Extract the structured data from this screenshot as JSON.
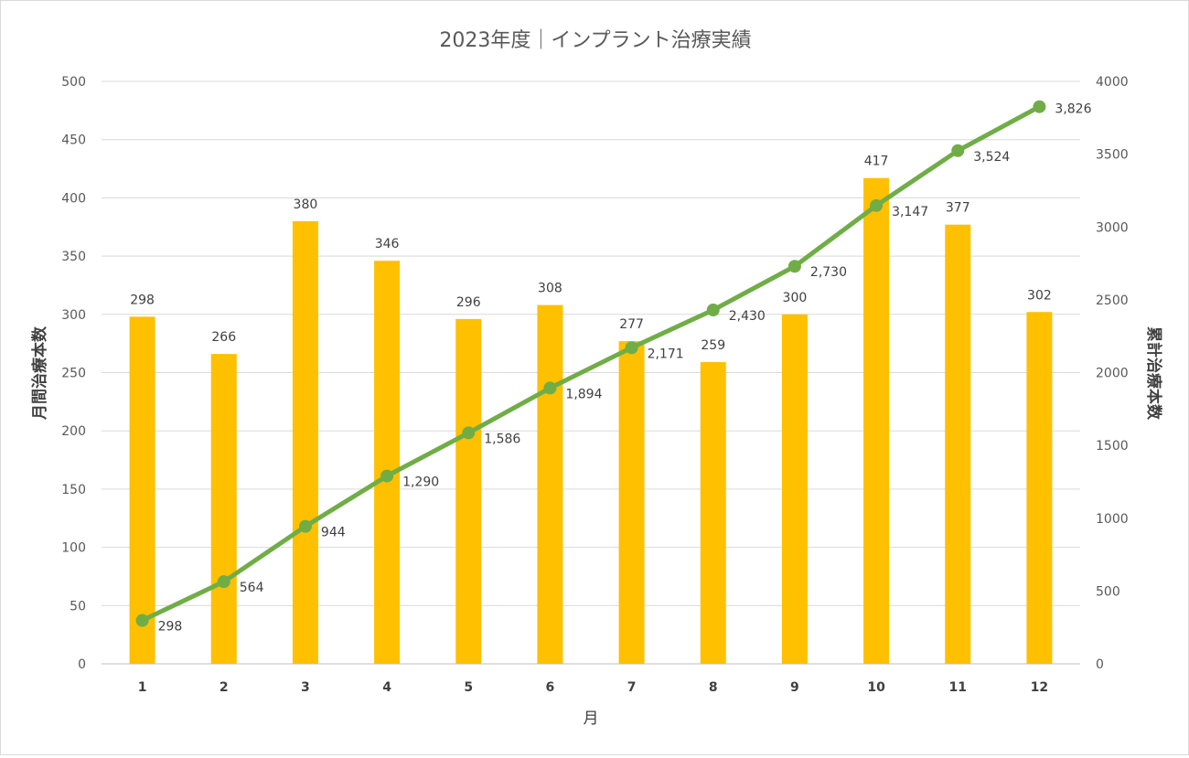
{
  "chart_data": {
    "type": "bar+line",
    "title": "2023年度｜インプラント治療実績",
    "xlabel": "月",
    "ylabel": "月間治療本数",
    "y2label": "累計治療本数",
    "categories": [
      "1",
      "2",
      "3",
      "4",
      "5",
      "6",
      "7",
      "8",
      "9",
      "10",
      "11",
      "12"
    ],
    "ylim": [
      0,
      500
    ],
    "yticks": [
      0,
      50,
      100,
      150,
      200,
      250,
      300,
      350,
      400,
      450,
      500
    ],
    "y2lim": [
      0,
      4000
    ],
    "y2ticks": [
      0,
      500,
      1000,
      1500,
      2000,
      2500,
      3000,
      3500,
      4000
    ],
    "grid": true,
    "series": [
      {
        "name": "月間治療本数",
        "type": "bar",
        "axis": "left",
        "color": "#FFC000",
        "values": [
          298,
          266,
          380,
          346,
          296,
          308,
          277,
          259,
          300,
          417,
          377,
          302
        ],
        "labels": [
          "298",
          "266",
          "380",
          "346",
          "296",
          "308",
          "277",
          "259",
          "300",
          "417",
          "377",
          "302"
        ]
      },
      {
        "name": "累計治療本数",
        "type": "line",
        "axis": "right",
        "color": "#70AD47",
        "values": [
          298,
          564,
          944,
          1290,
          1586,
          1894,
          2171,
          2430,
          2730,
          3147,
          3524,
          3826
        ],
        "labels": [
          "298",
          "564",
          "944",
          "1,290",
          "1,586",
          "1,894",
          "2,171",
          "2,430",
          "2,730",
          "3,147",
          "3,524",
          "3,826"
        ]
      }
    ]
  }
}
